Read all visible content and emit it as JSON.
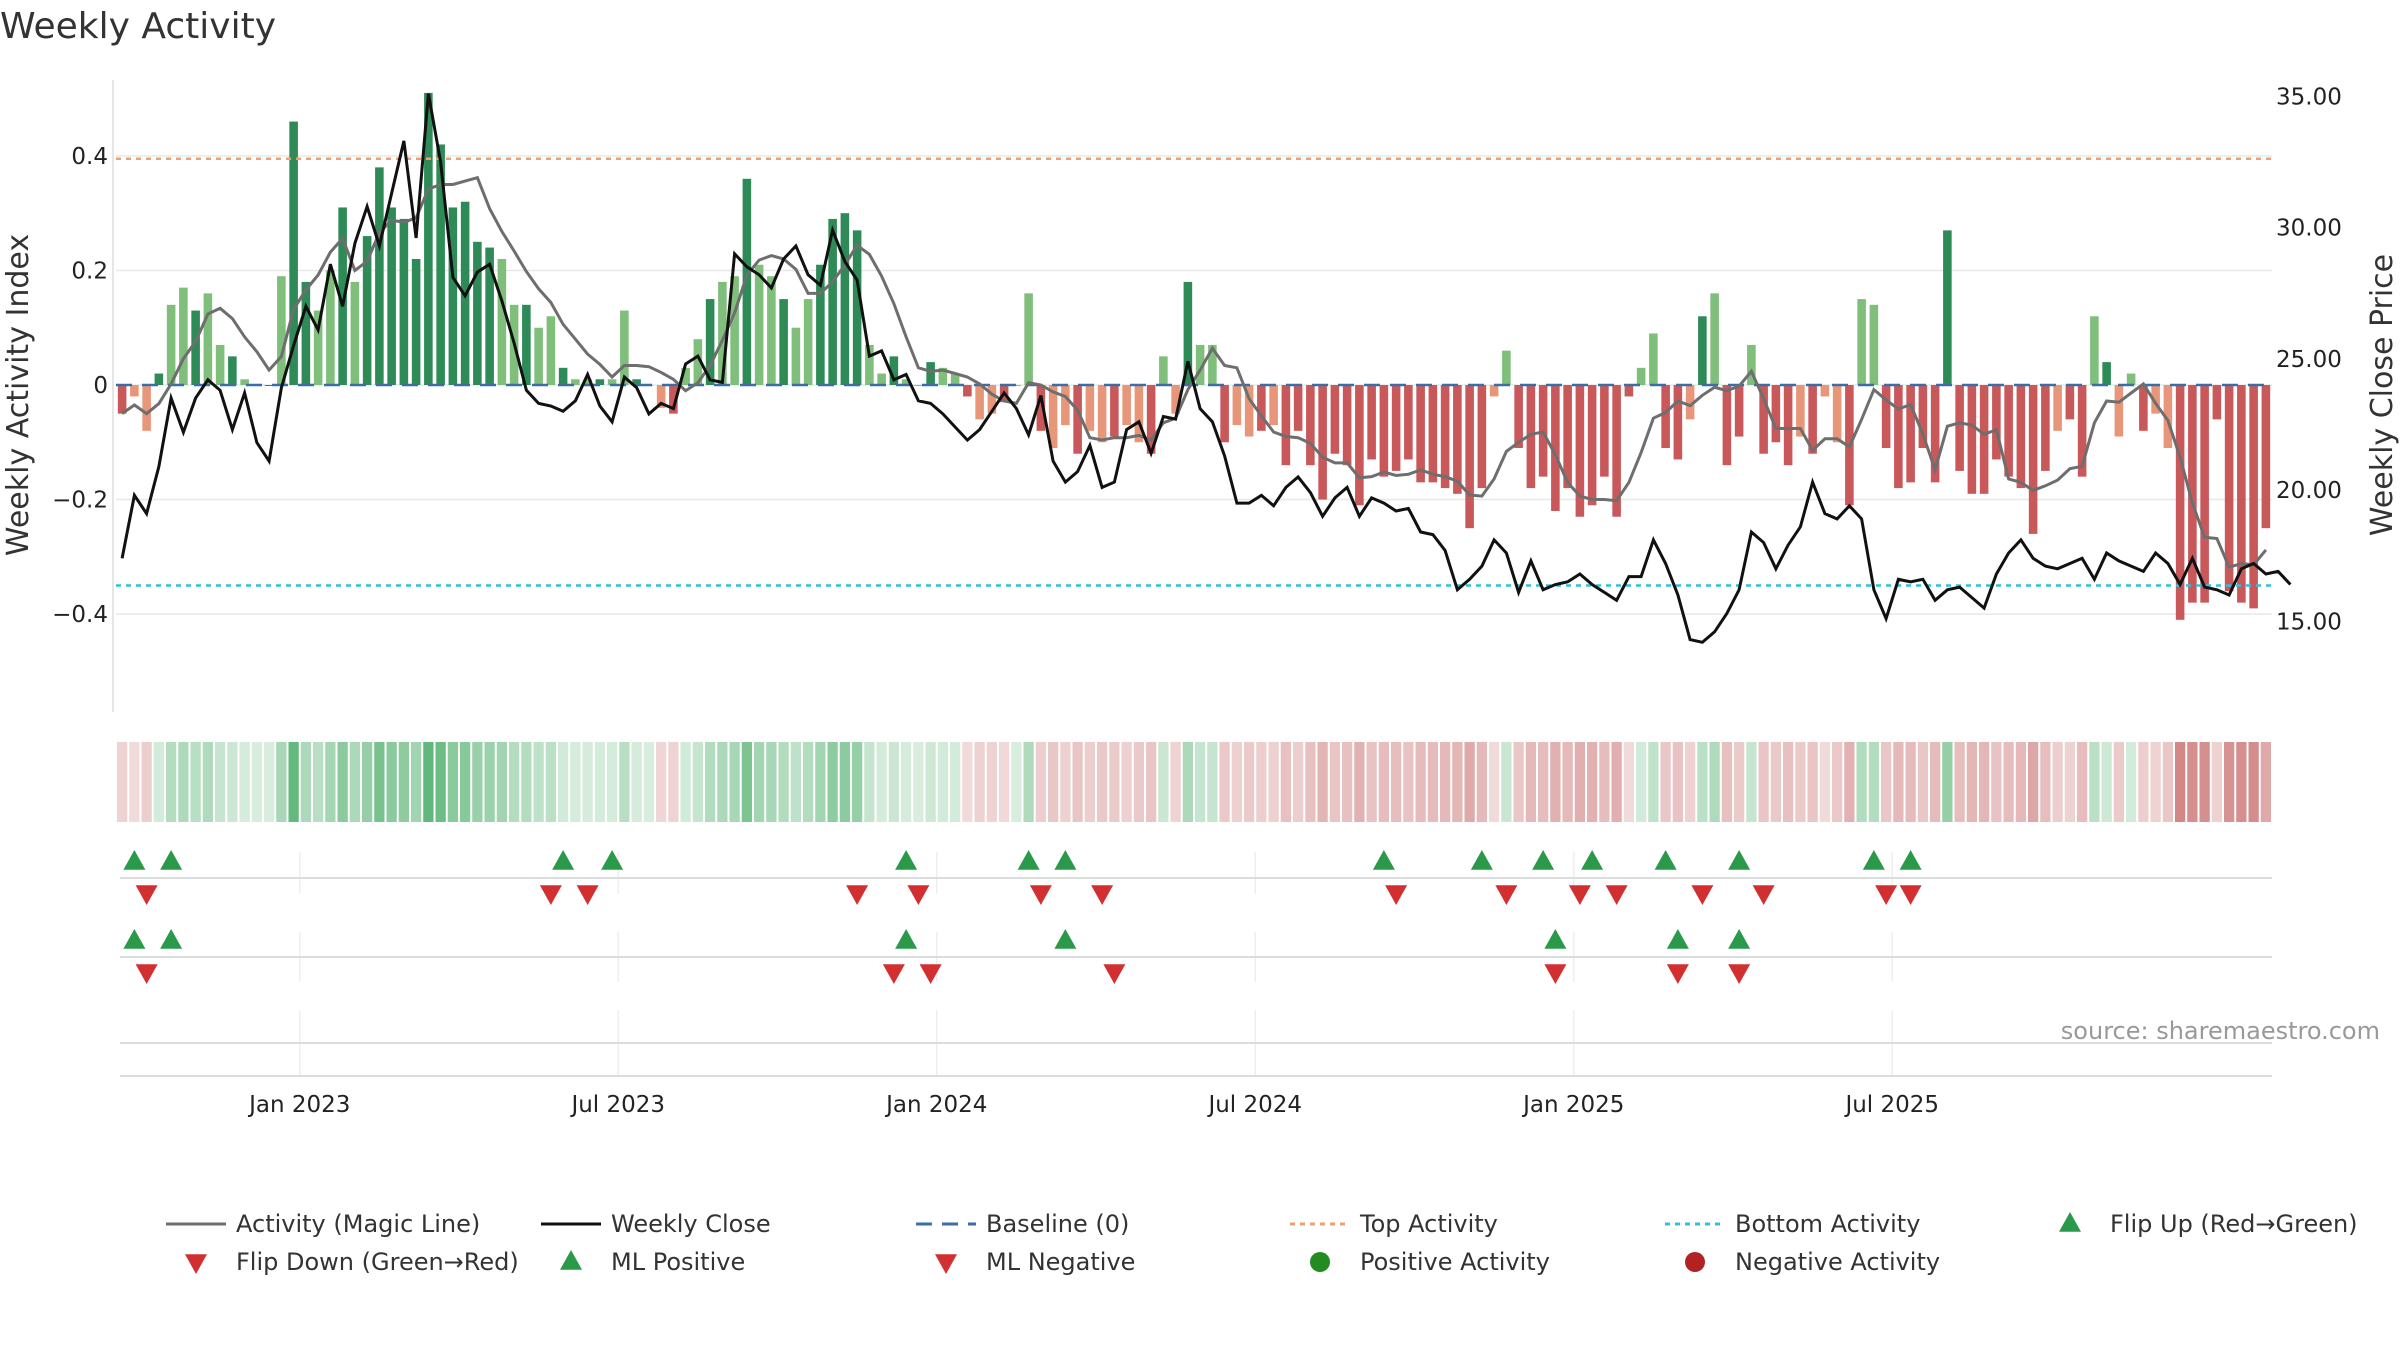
{
  "chart_data": {
    "type": "bar+line",
    "title": "Weekly Activity",
    "ylabel_left": "Weekly Activity Index",
    "ylabel_right": "Weekly Close Price",
    "source": "source: sharemaestro.com",
    "x_ticks": [
      "Jan 2023",
      "Jul 2023",
      "Jan 2024",
      "Jul 2024",
      "Jan 2025",
      "Jul 2025"
    ],
    "y_left_ticks": [
      "0.4",
      "0.2",
      "0",
      "−0.2",
      "−0.4"
    ],
    "y_left_tick_values": [
      0.4,
      0.2,
      0,
      -0.2,
      -0.4
    ],
    "y_right_ticks": [
      "35.00",
      "30.00",
      "25.00",
      "20.00",
      "15.00"
    ],
    "y_right_tick_values": [
      35,
      30,
      25,
      20,
      15
    ],
    "ylim_left": [
      -0.55,
      0.55
    ],
    "ylim_right": [
      12.0,
      36.0
    ],
    "top_activity": 0.395,
    "bottom_activity": -0.35,
    "week_start_index_of_jan2023": 14.5,
    "weeks_per_half_year": 26,
    "bars": [
      -0.05,
      -0.02,
      -0.08,
      0.02,
      0.14,
      0.17,
      0.13,
      0.16,
      0.07,
      0.05,
      0.01,
      0.0,
      0.0,
      0.19,
      0.46,
      0.18,
      0.13,
      0.2,
      0.31,
      0.18,
      0.26,
      0.38,
      0.31,
      0.29,
      0.22,
      0.51,
      0.42,
      0.31,
      0.32,
      0.25,
      0.24,
      0.22,
      0.14,
      0.14,
      0.1,
      0.12,
      0.03,
      0.01,
      0.01,
      0.01,
      0.01,
      0.13,
      0.01,
      0.0,
      -0.04,
      -0.05,
      0.03,
      0.08,
      0.15,
      0.18,
      0.19,
      0.36,
      0.21,
      0.19,
      0.15,
      0.1,
      0.15,
      0.21,
      0.29,
      0.3,
      0.27,
      0.07,
      0.02,
      0.05,
      0.01,
      0.0,
      0.04,
      0.03,
      0.02,
      -0.02,
      -0.06,
      -0.05,
      -0.03,
      0.0,
      0.16,
      -0.08,
      -0.11,
      -0.07,
      -0.12,
      -0.08,
      -0.1,
      -0.09,
      -0.07,
      -0.1,
      -0.12,
      0.05,
      -0.05,
      0.18,
      0.07,
      0.07,
      -0.1,
      -0.07,
      -0.09,
      -0.08,
      -0.07,
      -0.14,
      -0.08,
      -0.14,
      -0.2,
      -0.12,
      -0.14,
      -0.21,
      -0.13,
      -0.16,
      -0.15,
      -0.13,
      -0.17,
      -0.17,
      -0.18,
      -0.19,
      -0.25,
      -0.18,
      -0.02,
      0.06,
      -0.11,
      -0.18,
      -0.16,
      -0.22,
      -0.18,
      -0.23,
      -0.21,
      -0.16,
      -0.23,
      -0.02,
      0.03,
      0.09,
      -0.11,
      -0.13,
      -0.06,
      0.12,
      0.16,
      -0.14,
      -0.09,
      0.07,
      -0.12,
      -0.1,
      -0.14,
      -0.09,
      -0.12,
      -0.02,
      -0.1,
      -0.21,
      0.15,
      0.14,
      -0.11,
      -0.18,
      -0.17,
      -0.11,
      -0.17,
      0.27,
      -0.15,
      -0.19,
      -0.19,
      -0.13,
      -0.16,
      -0.18,
      -0.26,
      -0.15,
      -0.08,
      -0.06,
      -0.16,
      0.12,
      0.04,
      -0.09,
      0.02,
      -0.08,
      -0.05,
      -0.11,
      -0.41,
      -0.38,
      -0.38,
      -0.06,
      -0.36,
      -0.38,
      -0.39,
      -0.25
    ],
    "close": [
      17.4,
      19.8,
      19.1,
      20.9,
      23.5,
      22.2,
      23.5,
      24.2,
      23.8,
      22.3,
      23.7,
      21.8,
      21.1,
      23.9,
      25.5,
      27.0,
      26.1,
      28.6,
      27.0,
      29.4,
      30.8,
      29.3,
      31.3,
      33.3,
      29.6,
      35.1,
      32.5,
      28.1,
      27.4,
      28.3,
      28.6,
      27.2,
      25.6,
      23.8,
      23.3,
      23.2,
      23.0,
      23.4,
      24.4,
      23.2,
      22.6,
      24.3,
      23.9,
      22.9,
      23.3,
      23.1,
      24.8,
      25.1,
      24.2,
      24.1,
      29.0,
      28.5,
      28.2,
      27.7,
      28.8,
      29.3,
      28.2,
      27.8,
      29.9,
      28.7,
      28.0,
      25.1,
      25.3,
      24.2,
      24.4,
      23.4,
      23.3,
      22.9,
      22.4,
      21.9,
      22.3,
      23.0,
      23.7,
      23.1,
      22.1,
      23.6,
      21.1,
      20.3,
      20.7,
      21.7,
      20.1,
      20.3,
      22.3,
      22.6,
      21.4,
      22.8,
      22.7,
      24.9,
      23.1,
      22.6,
      21.3,
      19.5,
      19.5,
      19.8,
      19.4,
      20.1,
      20.5,
      19.9,
      19.0,
      19.7,
      20.1,
      19.0,
      19.7,
      19.5,
      19.2,
      19.3,
      18.4,
      18.3,
      17.7,
      16.2,
      16.6,
      17.1,
      18.1,
      17.6,
      16.1,
      17.3,
      16.2,
      16.4,
      16.5,
      16.8,
      16.4,
      16.1,
      15.8,
      16.7,
      16.7,
      18.1,
      17.2,
      16.0,
      14.3,
      14.2,
      14.6,
      15.3,
      16.2,
      18.4,
      18.0,
      17.0,
      17.9,
      18.6,
      20.3,
      19.1,
      18.9,
      19.4,
      18.9,
      16.2,
      15.1,
      16.6,
      16.5,
      16.6,
      15.8,
      16.2,
      16.3,
      15.9,
      15.5,
      16.8,
      17.6,
      18.1,
      17.4,
      17.1,
      17.0,
      17.2,
      17.4,
      16.6,
      17.6,
      17.3,
      17.1,
      16.9,
      17.6,
      17.2,
      16.4,
      17.4,
      16.3,
      16.2,
      16.0,
      17.0,
      17.2,
      16.8,
      16.9,
      16.4
    ],
    "markers": {
      "flip_up_row1": [
        1,
        4,
        36,
        40,
        64,
        74,
        77,
        103,
        111,
        116,
        120,
        126,
        132,
        143,
        146
      ],
      "flip_down_row1": [
        2,
        35,
        38,
        60,
        65,
        75,
        80,
        104,
        113,
        119,
        122,
        129,
        134,
        144,
        146
      ],
      "ml_positive_row2": [
        1,
        4,
        64,
        77,
        117,
        127,
        132
      ],
      "ml_negative_row2": [
        2,
        63,
        66,
        81,
        117,
        127,
        132
      ]
    },
    "legend": [
      {
        "label": "Activity (Magic Line)",
        "kind": "line",
        "color": "#6e6e6e"
      },
      {
        "label": "Weekly Close",
        "kind": "line",
        "color": "#111111"
      },
      {
        "label": "Baseline (0)",
        "kind": "dash",
        "color": "#3c6ea5"
      },
      {
        "label": "Top Activity",
        "kind": "dot",
        "color": "#f0a070"
      },
      {
        "label": "Bottom Activity",
        "kind": "dot",
        "color": "#30c0d8"
      },
      {
        "label": "Flip Up (Red→Green)",
        "kind": "tri-up",
        "color": "#2a9a4a"
      },
      {
        "label": "Flip Down (Green→Red)",
        "kind": "tri-down",
        "color": "#d23030"
      },
      {
        "label": "ML Positive",
        "kind": "tri-up",
        "color": "#2a9a4a"
      },
      {
        "label": "ML Negative",
        "kind": "tri-down",
        "color": "#d23030"
      },
      {
        "label": "Positive Activity",
        "kind": "circle",
        "color": "#228b22"
      },
      {
        "label": "Negative Activity",
        "kind": "circle",
        "color": "#b22222"
      }
    ],
    "colors": {
      "pos_dark": "#2e8b57",
      "pos_light": "#7fbf7b",
      "neg_dark": "#c8585a",
      "neg_light": "#e8967a",
      "grid": "#e8e8e8"
    }
  }
}
